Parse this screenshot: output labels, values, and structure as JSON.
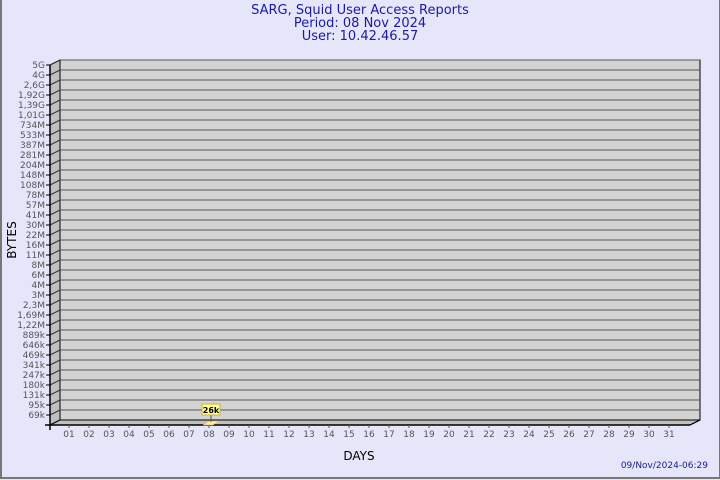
{
  "header": {
    "title": "SARG, Squid User Access Reports",
    "period": "Period: 08 Nov 2024",
    "user": "User: 10.42.46.57"
  },
  "footer": {
    "timestamp": "09/Nov/2024-06:29"
  },
  "chart_data": {
    "type": "bar",
    "title": "SARG, Squid User Access Reports",
    "xlabel": "DAYS",
    "ylabel": "BYTES",
    "y_scale": "log",
    "y_tick_labels": [
      "5G",
      "4G",
      "2,6G",
      "1,92G",
      "1,39G",
      "1,01G",
      "734M",
      "533M",
      "387M",
      "281M",
      "204M",
      "148M",
      "108M",
      "78M",
      "57M",
      "41M",
      "30M",
      "22M",
      "16M",
      "11M",
      "8M",
      "6M",
      "4M",
      "3M",
      "2,3M",
      "1,69M",
      "1,22M",
      "889k",
      "646k",
      "469k",
      "341k",
      "247k",
      "180k",
      "131k",
      "95k",
      "69k"
    ],
    "categories": [
      "01",
      "02",
      "03",
      "04",
      "05",
      "06",
      "07",
      "08",
      "09",
      "10",
      "11",
      "12",
      "13",
      "14",
      "15",
      "16",
      "17",
      "18",
      "19",
      "20",
      "21",
      "22",
      "23",
      "24",
      "25",
      "26",
      "27",
      "28",
      "29",
      "30",
      "31"
    ],
    "values": [
      0,
      0,
      0,
      0,
      0,
      0,
      0,
      26000,
      0,
      0,
      0,
      0,
      0,
      0,
      0,
      0,
      0,
      0,
      0,
      0,
      0,
      0,
      0,
      0,
      0,
      0,
      0,
      0,
      0,
      0,
      0
    ],
    "data_labels": {
      "08": "26k"
    },
    "grid": true,
    "colors": {
      "background": "#e6e6fa",
      "plot": "#d3d3d3",
      "bar": "#ffe9a0",
      "label_box": "#ffff99",
      "title": "#1a1aa6"
    }
  }
}
